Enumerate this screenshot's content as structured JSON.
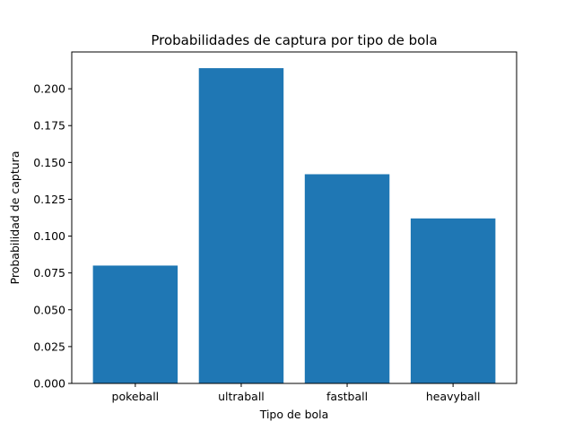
{
  "chart_data": {
    "type": "bar",
    "title": "Probabilidades de captura por tipo de bola",
    "xlabel": "Tipo de bola",
    "ylabel": "Probabilidad de captura",
    "categories": [
      "pokeball",
      "ultraball",
      "fastball",
      "heavyball"
    ],
    "values": [
      0.08,
      0.214,
      0.142,
      0.112
    ],
    "ylim": [
      0,
      0.225
    ],
    "yticks": [
      0.0,
      0.025,
      0.05,
      0.075,
      0.1,
      0.125,
      0.15,
      0.175,
      0.2
    ],
    "ytick_labels": [
      "0.000",
      "0.025",
      "0.050",
      "0.075",
      "0.100",
      "0.125",
      "0.150",
      "0.175",
      "0.200"
    ],
    "bar_color": "#1f77b4",
    "grid": false,
    "legend": "none"
  }
}
